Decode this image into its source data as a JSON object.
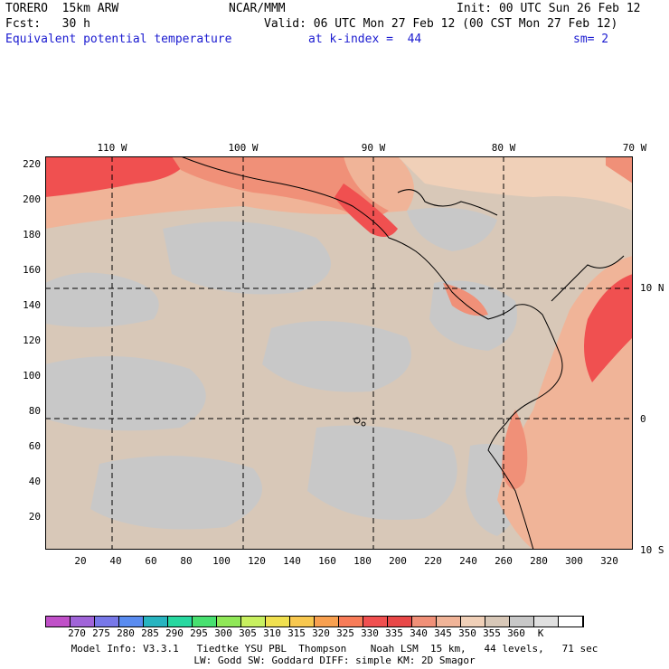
{
  "header": {
    "model": "TORERO  15km ARW",
    "center": "NCAR/MMM",
    "init": "Init: 00 UTC Sun 26 Feb 12",
    "fcst": "Fcst:   30 h",
    "valid": "Valid: 06 UTC Mon 27 Feb 12 (00 CST Mon 27 Feb 12)",
    "field": "Equivalent potential temperature",
    "level": "at k-index =  44",
    "smooth": "sm= 2"
  },
  "top_ticks": [
    "110 W",
    "100 W",
    "90 W",
    "80 W",
    "70 W"
  ],
  "right_ticks": [
    "10 N",
    "0",
    "10 S"
  ],
  "left_ticks": [
    "220",
    "200",
    "180",
    "160",
    "140",
    "120",
    "100",
    "80",
    "60",
    "40",
    "20"
  ],
  "bottom_ticks": [
    "20",
    "40",
    "60",
    "80",
    "100",
    "120",
    "140",
    "160",
    "180",
    "200",
    "220",
    "240",
    "260",
    "280",
    "300",
    "320"
  ],
  "colorbar": {
    "colors": [
      "#c050c8",
      "#a064d8",
      "#7878e8",
      "#5a8cf0",
      "#28b4c0",
      "#28d8a0",
      "#48e070",
      "#90e858",
      "#c8f060",
      "#f0e050",
      "#f8c850",
      "#f8a050",
      "#f87c58",
      "#f05050",
      "#e84848",
      "#f09078",
      "#f0b498",
      "#f0d0b8",
      "#d8c8b8",
      "#c8c8c8",
      "#e0e0e0",
      "#ffffff"
    ],
    "labels": [
      "270",
      "275",
      "280",
      "285",
      "290",
      "295",
      "300",
      "305",
      "310",
      "315",
      "320",
      "325",
      "330",
      "335",
      "340",
      "345",
      "350",
      "355",
      "360",
      "K"
    ]
  },
  "footer": {
    "line1": "Model Info: V3.3.1   Tiedtke YSU PBL  Thompson    Noah LSM  15 km,   44 levels,   71 sec",
    "line2": "LW: Godd SW: Goddard DIFF: simple KM: 2D Smagor"
  }
}
